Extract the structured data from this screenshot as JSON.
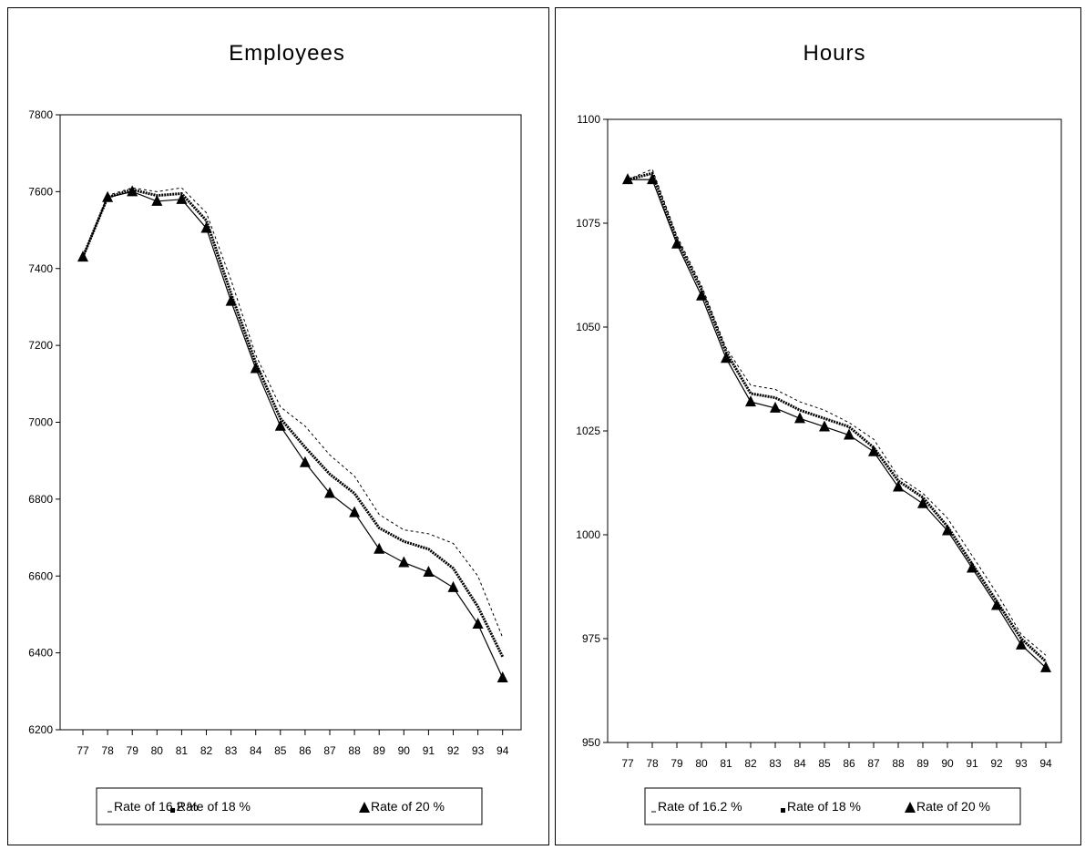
{
  "chart_data": [
    {
      "type": "line",
      "title": "Employees",
      "xlabel": "",
      "ylabel": "",
      "ylim": [
        6200,
        7800
      ],
      "yticks": [
        6200,
        6400,
        6600,
        6800,
        7000,
        7200,
        7400,
        7600,
        7800
      ],
      "x": [
        "77",
        "78",
        "79",
        "80",
        "81",
        "82",
        "83",
        "84",
        "85",
        "86",
        "87",
        "88",
        "89",
        "90",
        "91",
        "92",
        "93",
        "94"
      ],
      "grid": false,
      "legend_position": "bottom",
      "series": [
        {
          "name": "Rate of 16.2 %",
          "style": "dashed",
          "values": [
            7430,
            7590,
            7610,
            7600,
            7610,
            7545,
            7370,
            7175,
            7040,
            6990,
            6915,
            6860,
            6760,
            6720,
            6710,
            6685,
            6600,
            6440
          ]
        },
        {
          "name": "Rate of 18 %",
          "style": "square-markers",
          "values": [
            7430,
            7585,
            7605,
            7590,
            7595,
            7525,
            7335,
            7155,
            7010,
            6935,
            6865,
            6815,
            6725,
            6690,
            6670,
            6620,
            6520,
            6390
          ]
        },
        {
          "name": "Rate of 20 %",
          "style": "triangle-markers",
          "values": [
            7430,
            7585,
            7600,
            7575,
            7580,
            7505,
            7315,
            7140,
            6990,
            6895,
            6815,
            6765,
            6670,
            6635,
            6610,
            6570,
            6475,
            6335
          ]
        }
      ]
    },
    {
      "type": "line",
      "title": "Hours",
      "xlabel": "",
      "ylabel": "",
      "ylim": [
        950,
        1100
      ],
      "yticks": [
        950,
        975,
        1000,
        1025,
        1050,
        1075,
        1100
      ],
      "x": [
        "77",
        "78",
        "79",
        "80",
        "81",
        "82",
        "83",
        "84",
        "85",
        "86",
        "87",
        "88",
        "89",
        "90",
        "91",
        "92",
        "93",
        "94"
      ],
      "grid": false,
      "legend_position": "bottom",
      "series": [
        {
          "name": "Rate of 16.2 %",
          "style": "dashed",
          "values": [
            1085.5,
            1088,
            1072,
            1060,
            1045,
            1036,
            1035,
            1032,
            1030,
            1027,
            1023,
            1014,
            1010,
            1004,
            995,
            986,
            976,
            971
          ]
        },
        {
          "name": "Rate of 18 %",
          "style": "square-markers",
          "values": [
            1085.5,
            1087,
            1071,
            1059,
            1044,
            1034,
            1033,
            1030,
            1028,
            1026,
            1021,
            1013,
            1009,
            1002,
            993,
            984,
            975,
            969.5
          ]
        },
        {
          "name": "Rate of 20 %",
          "style": "triangle-markers",
          "values": [
            1085.5,
            1085.5,
            1070,
            1057.5,
            1042.5,
            1032,
            1030.5,
            1028,
            1026,
            1024,
            1020,
            1011.5,
            1007.5,
            1001,
            992,
            983,
            973.5,
            968
          ]
        }
      ]
    }
  ]
}
